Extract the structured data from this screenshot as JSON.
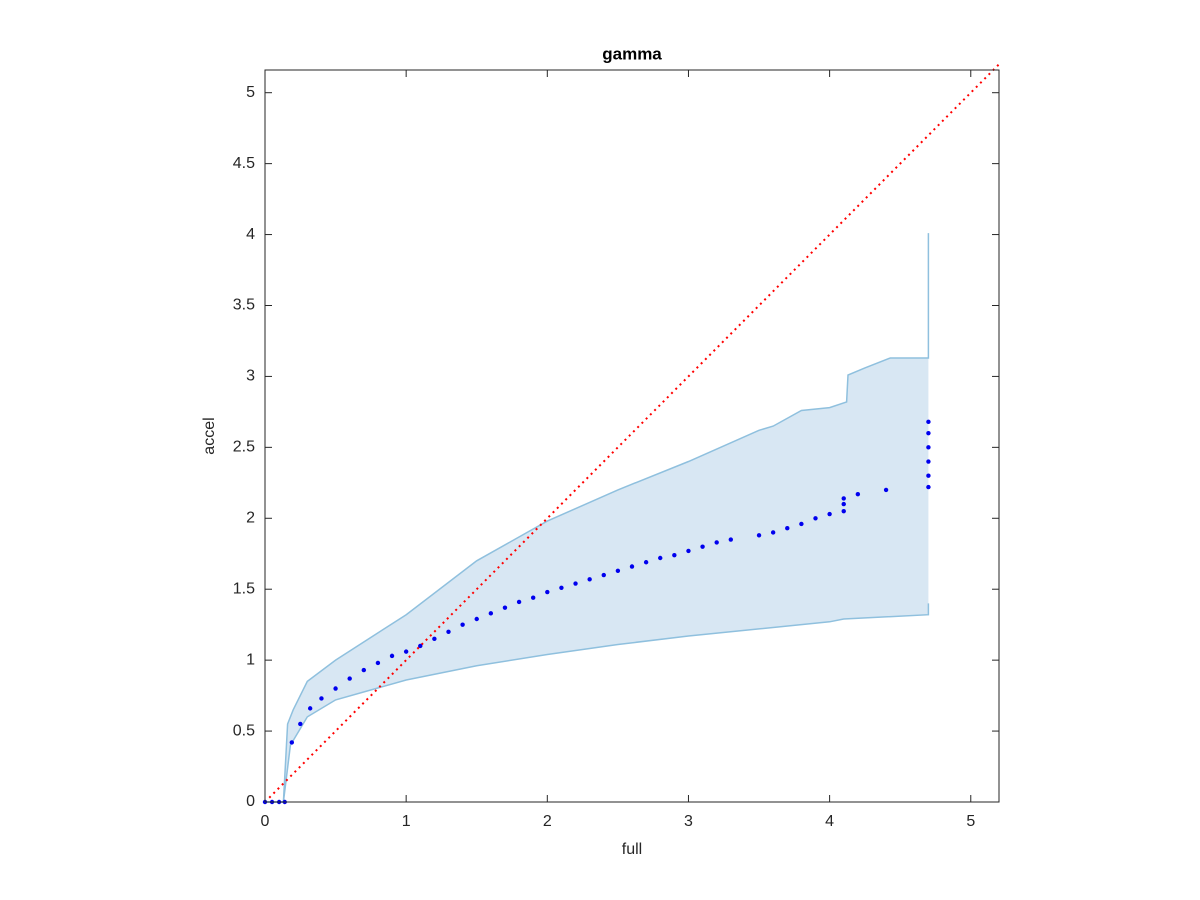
{
  "chart_data": {
    "type": "scatter",
    "title": "gamma",
    "x_label": "full",
    "y_label": "accel",
    "xlim": [
      0,
      5.2
    ],
    "ylim": [
      0,
      5.16
    ],
    "xticks": [
      0,
      1,
      2,
      3,
      4,
      5
    ],
    "yticks": [
      0,
      0.5,
      1,
      1.5,
      2,
      2.5,
      3,
      3.5,
      4,
      4.5,
      5
    ],
    "grid": false,
    "band": {
      "color": "#d8e7f3",
      "edge_color": "#8fc0de",
      "x_upper": [
        0,
        0.13,
        0.16,
        0.2,
        0.3,
        0.5,
        1.0,
        1.5,
        2.0,
        2.5,
        3.0,
        3.5,
        3.6,
        3.8,
        4.0,
        4.12,
        4.13,
        4.25,
        4.43,
        4.7,
        4.7
      ],
      "upper": [
        0,
        0,
        0.55,
        0.65,
        0.85,
        1.0,
        1.32,
        1.7,
        1.98,
        2.2,
        2.4,
        2.62,
        2.65,
        2.76,
        2.78,
        2.82,
        3.01,
        3.06,
        3.13,
        3.13,
        4.01
      ],
      "x_lower": [
        0,
        0.13,
        0.18,
        0.3,
        0.5,
        1.0,
        1.5,
        2.0,
        2.5,
        3.0,
        3.5,
        4.0,
        4.1,
        4.7,
        4.7
      ],
      "lower": [
        0,
        0,
        0.4,
        0.6,
        0.72,
        0.86,
        0.96,
        1.04,
        1.11,
        1.17,
        1.22,
        1.27,
        1.29,
        1.32,
        1.4
      ]
    },
    "reference_line": {
      "color": "#ff0000",
      "x": [
        0,
        5.2
      ],
      "values": [
        0,
        5.2
      ]
    },
    "series": [
      {
        "color": "#0000ee",
        "x": [
          0,
          0.05,
          0.1,
          0.14,
          0.19,
          0.25,
          0.32,
          0.4,
          0.5,
          0.6,
          0.7,
          0.8,
          0.9,
          1.0,
          1.1,
          1.2,
          1.3,
          1.4,
          1.5,
          1.6,
          1.7,
          1.8,
          1.9,
          2.0,
          2.1,
          2.2,
          2.3,
          2.4,
          2.5,
          2.6,
          2.7,
          2.8,
          2.9,
          3.0,
          3.1,
          3.2,
          3.3,
          3.5,
          3.6,
          3.7,
          3.8,
          3.9,
          4.0,
          4.1,
          4.1,
          4.1,
          4.2,
          4.4,
          4.7,
          4.7,
          4.7,
          4.7,
          4.7,
          4.7
        ],
        "values": [
          0,
          0,
          0,
          0,
          0.42,
          0.55,
          0.66,
          0.73,
          0.8,
          0.87,
          0.93,
          0.98,
          1.03,
          1.06,
          1.1,
          1.15,
          1.2,
          1.25,
          1.29,
          1.33,
          1.37,
          1.41,
          1.44,
          1.48,
          1.51,
          1.54,
          1.57,
          1.6,
          1.63,
          1.66,
          1.69,
          1.72,
          1.74,
          1.77,
          1.8,
          1.83,
          1.85,
          1.88,
          1.9,
          1.93,
          1.96,
          2.0,
          2.03,
          2.05,
          2.1,
          2.14,
          2.17,
          2.2,
          2.22,
          2.3,
          2.4,
          2.5,
          2.6,
          2.68
        ]
      }
    ]
  }
}
